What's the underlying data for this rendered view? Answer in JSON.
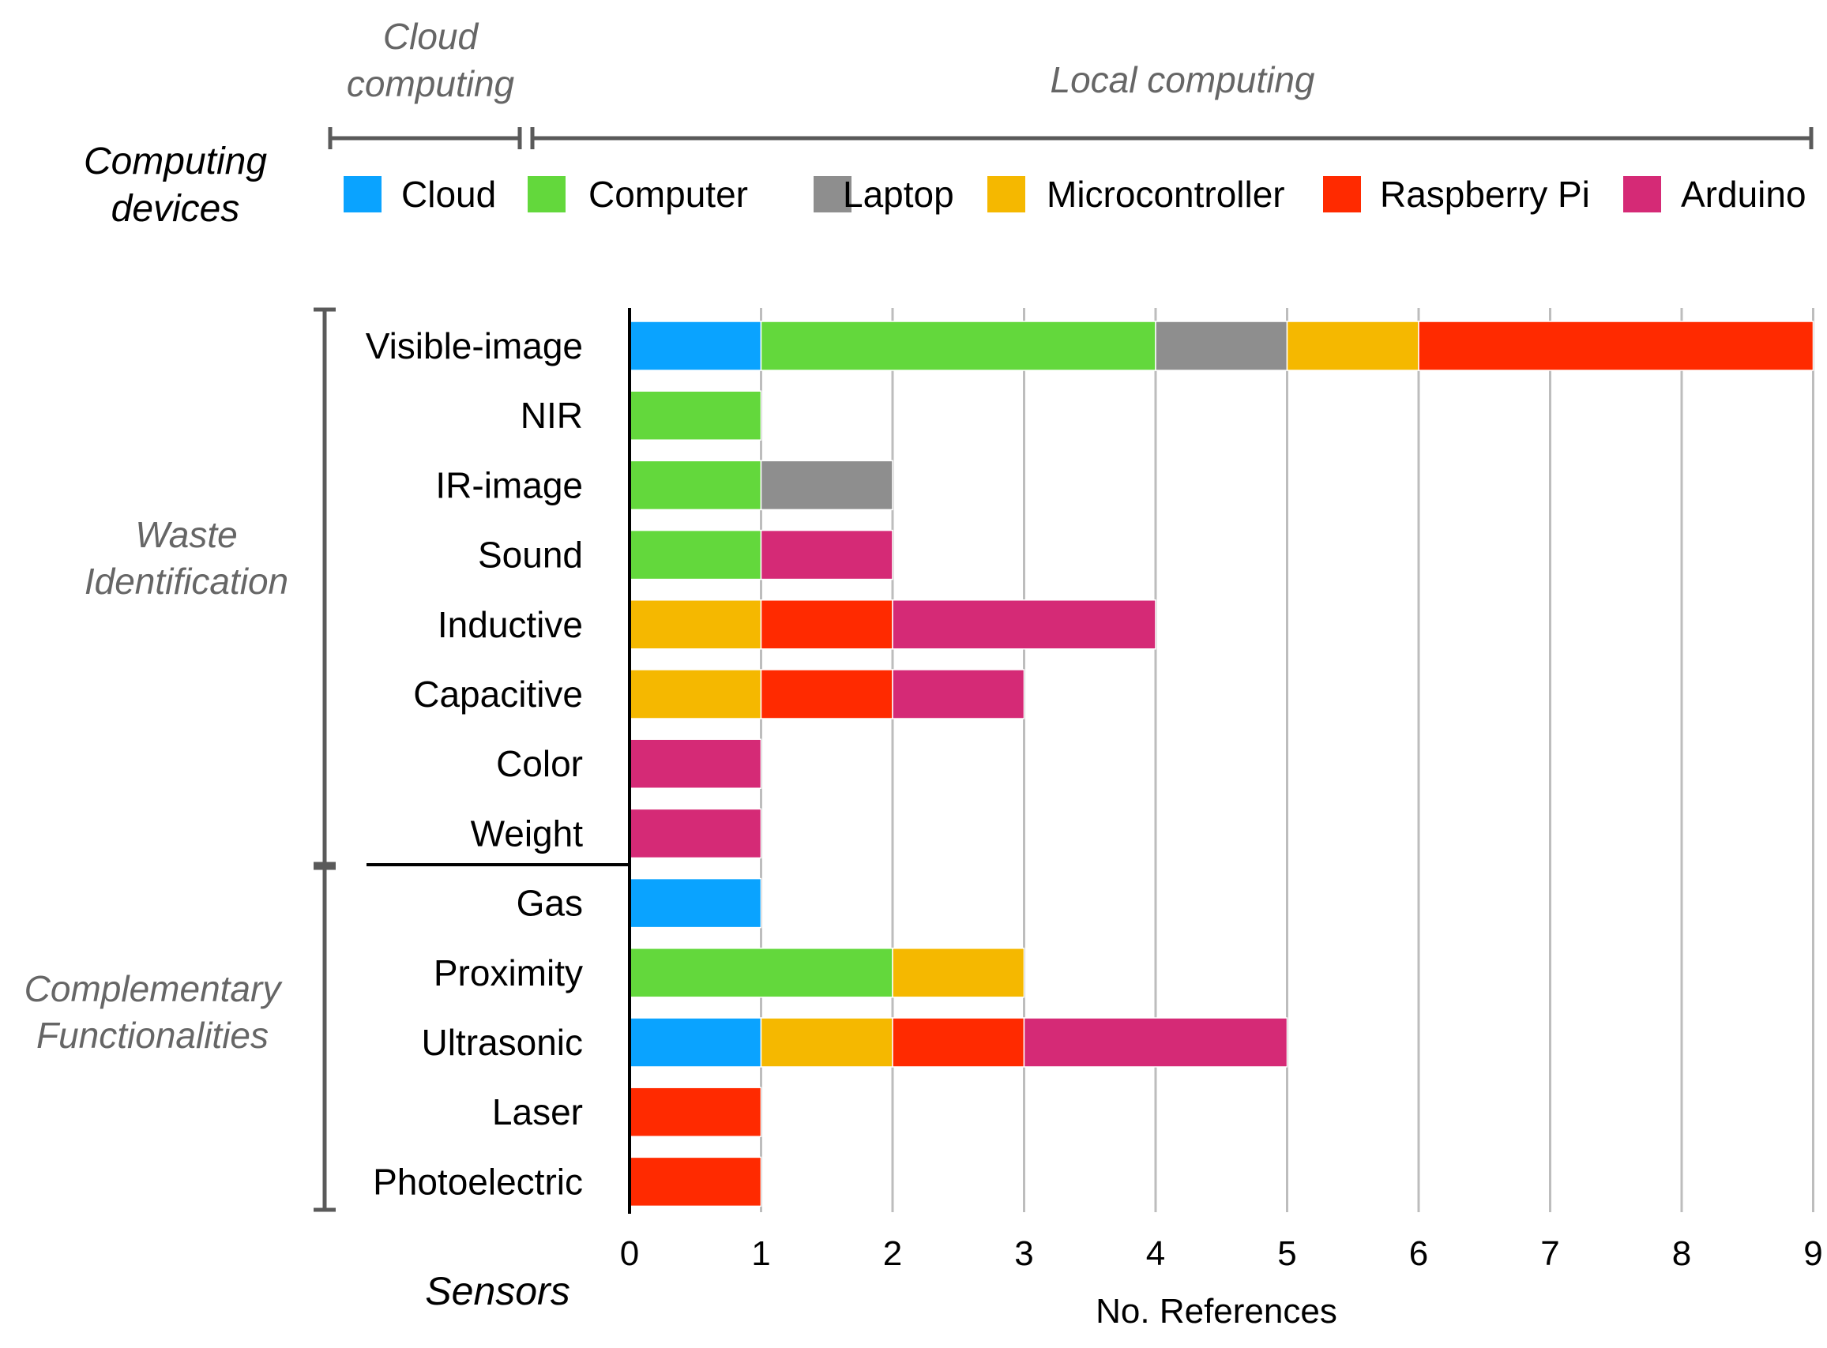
{
  "chart_data": {
    "type": "bar",
    "orientation": "horizontal",
    "stacked": true,
    "xlabel": "No. References",
    "ylabel": "Sensors",
    "xlim": [
      0,
      9
    ],
    "xticks": [
      "0",
      "1",
      "2",
      "3",
      "4",
      "5",
      "6",
      "7",
      "8",
      "9"
    ],
    "grid": "vertical",
    "legend_title": "Computing devices",
    "legend_position": "top",
    "header_groups": [
      {
        "label": "Cloud computing",
        "members": [
          "Cloud"
        ]
      },
      {
        "label": "Local computing",
        "members": [
          "Computer",
          "Laptop",
          "Microcontroller",
          "Raspberry Pi",
          "Arduino"
        ]
      }
    ],
    "category_groups": [
      {
        "label": "Waste Identification",
        "members": [
          "Visible-image",
          "NIR",
          "IR-image",
          "Sound",
          "Inductive",
          "Capacitive",
          "Color",
          "Weight"
        ]
      },
      {
        "label": "Complementary Functionalities",
        "members": [
          "Gas",
          "Proximity",
          "Ultrasonic",
          "Laser",
          "Photoelectric"
        ]
      }
    ],
    "categories": [
      "Visible-image",
      "NIR",
      "IR-image",
      "Sound",
      "Inductive",
      "Capacitive",
      "Color",
      "Weight",
      "Gas",
      "Proximity",
      "Ultrasonic",
      "Laser",
      "Photoelectric"
    ],
    "series": [
      {
        "name": "Cloud",
        "color": "#0aa3ff",
        "values": [
          1,
          0,
          0,
          0,
          0,
          0,
          0,
          0,
          1,
          0,
          1,
          0,
          0
        ]
      },
      {
        "name": "Computer",
        "color": "#63d83c",
        "values": [
          3,
          1,
          1,
          1,
          0,
          0,
          0,
          0,
          0,
          2,
          0,
          0,
          0
        ]
      },
      {
        "name": "Laptop",
        "color": "#8e8e8e",
        "values": [
          1,
          0,
          1,
          0,
          0,
          0,
          0,
          0,
          0,
          0,
          0,
          0,
          0
        ]
      },
      {
        "name": "Microcontroller",
        "color": "#f5b800",
        "values": [
          1,
          0,
          0,
          0,
          1,
          1,
          0,
          0,
          0,
          1,
          1,
          0,
          0
        ]
      },
      {
        "name": "Raspberry Pi",
        "color": "#ff2a00",
        "values": [
          3,
          0,
          0,
          0,
          1,
          1,
          0,
          0,
          0,
          0,
          1,
          1,
          1
        ]
      },
      {
        "name": "Arduino",
        "color": "#d52a76",
        "values": [
          0,
          0,
          0,
          1,
          2,
          1,
          1,
          1,
          0,
          0,
          2,
          0,
          0
        ]
      }
    ]
  }
}
